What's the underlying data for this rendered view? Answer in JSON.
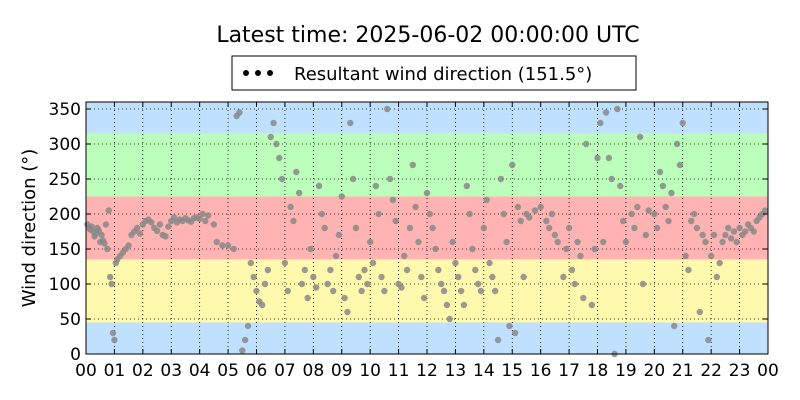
{
  "chart_data": {
    "type": "scatter",
    "title": "Latest time: 2025-06-02 00:00:00 UTC",
    "xlabel": "",
    "ylabel": "Wind direction (°)",
    "xlim": [
      0,
      24
    ],
    "ylim": [
      0,
      360
    ],
    "x_ticks": [
      "00",
      "01",
      "02",
      "03",
      "04",
      "05",
      "06",
      "07",
      "08",
      "09",
      "10",
      "11",
      "12",
      "13",
      "14",
      "15",
      "16",
      "17",
      "18",
      "19",
      "20",
      "21",
      "22",
      "23",
      "00"
    ],
    "y_ticks": [
      0,
      50,
      100,
      150,
      200,
      250,
      300,
      350
    ],
    "grid": true,
    "legend": {
      "placement": "top-center",
      "entries": [
        "Resultant wind direction (151.5°)"
      ]
    },
    "background_bands": [
      {
        "from": 0,
        "to": 45,
        "color": "#bfe0ff"
      },
      {
        "from": 45,
        "to": 135,
        "color": "#fff9ad"
      },
      {
        "from": 135,
        "to": 225,
        "color": "#ffb3b3"
      },
      {
        "from": 225,
        "to": 315,
        "color": "#bbffbb"
      },
      {
        "from": 315,
        "to": 360,
        "color": "#bfe0ff"
      }
    ],
    "series": [
      {
        "name": "Resultant wind direction (151.5°)",
        "color": "#888888",
        "points": [
          [
            0.05,
            185
          ],
          [
            0.1,
            180
          ],
          [
            0.15,
            178
          ],
          [
            0.2,
            182
          ],
          [
            0.25,
            175
          ],
          [
            0.3,
            168
          ],
          [
            0.35,
            172
          ],
          [
            0.4,
            180
          ],
          [
            0.45,
            176
          ],
          [
            0.5,
            160
          ],
          [
            0.55,
            170
          ],
          [
            0.6,
            162
          ],
          [
            0.65,
            158
          ],
          [
            0.7,
            185
          ],
          [
            0.75,
            150
          ],
          [
            0.8,
            205
          ],
          [
            0.85,
            110
          ],
          [
            0.9,
            100
          ],
          [
            0.95,
            30
          ],
          [
            1.0,
            20
          ],
          [
            1.05,
            130
          ],
          [
            1.1,
            135
          ],
          [
            1.2,
            140
          ],
          [
            1.3,
            145
          ],
          [
            1.4,
            150
          ],
          [
            1.5,
            155
          ],
          [
            1.6,
            170
          ],
          [
            1.7,
            175
          ],
          [
            1.8,
            180
          ],
          [
            1.9,
            172
          ],
          [
            2.0,
            185
          ],
          [
            2.1,
            190
          ],
          [
            2.2,
            192
          ],
          [
            2.3,
            188
          ],
          [
            2.4,
            180
          ],
          [
            2.5,
            176
          ],
          [
            2.6,
            185
          ],
          [
            2.7,
            170
          ],
          [
            2.8,
            168
          ],
          [
            2.9,
            182
          ],
          [
            3.0,
            190
          ],
          [
            3.1,
            195
          ],
          [
            3.2,
            188
          ],
          [
            3.3,
            192
          ],
          [
            3.4,
            190
          ],
          [
            3.5,
            194
          ],
          [
            3.6,
            191
          ],
          [
            3.7,
            189
          ],
          [
            3.8,
            194
          ],
          [
            3.9,
            195
          ],
          [
            4.0,
            193
          ],
          [
            4.1,
            200
          ],
          [
            4.2,
            190
          ],
          [
            4.3,
            198
          ],
          [
            4.5,
            185
          ],
          [
            4.6,
            160
          ],
          [
            4.8,
            155
          ],
          [
            5.0,
            155
          ],
          [
            5.2,
            150
          ],
          [
            5.3,
            340
          ],
          [
            5.4,
            345
          ],
          [
            5.5,
            5
          ],
          [
            5.6,
            20
          ],
          [
            5.7,
            40
          ],
          [
            5.8,
            130
          ],
          [
            5.9,
            110
          ],
          [
            6.0,
            90
          ],
          [
            6.1,
            75
          ],
          [
            6.2,
            70
          ],
          [
            6.3,
            100
          ],
          [
            6.4,
            120
          ],
          [
            6.5,
            310
          ],
          [
            6.6,
            330
          ],
          [
            6.7,
            300
          ],
          [
            6.8,
            280
          ],
          [
            6.9,
            250
          ],
          [
            7.0,
            130
          ],
          [
            7.1,
            90
          ],
          [
            7.2,
            210
          ],
          [
            7.3,
            190
          ],
          [
            7.4,
            260
          ],
          [
            7.5,
            230
          ],
          [
            7.6,
            100
          ],
          [
            7.7,
            120
          ],
          [
            7.8,
            80
          ],
          [
            7.9,
            150
          ],
          [
            8.0,
            110
          ],
          [
            8.1,
            95
          ],
          [
            8.2,
            240
          ],
          [
            8.3,
            200
          ],
          [
            8.4,
            180
          ],
          [
            8.5,
            100
          ],
          [
            8.6,
            120
          ],
          [
            8.7,
            90
          ],
          [
            8.8,
            140
          ],
          [
            8.9,
            170
          ],
          [
            9.0,
            225
          ],
          [
            9.1,
            80
          ],
          [
            9.2,
            60
          ],
          [
            9.3,
            330
          ],
          [
            9.4,
            250
          ],
          [
            9.5,
            180
          ],
          [
            9.6,
            110
          ],
          [
            9.7,
            90
          ],
          [
            9.8,
            120
          ],
          [
            9.9,
            100
          ],
          [
            10.0,
            160
          ],
          [
            10.1,
            130
          ],
          [
            10.2,
            240
          ],
          [
            10.3,
            200
          ],
          [
            10.4,
            110
          ],
          [
            10.5,
            90
          ],
          [
            10.6,
            350
          ],
          [
            10.7,
            250
          ],
          [
            10.8,
            220
          ],
          [
            10.9,
            190
          ],
          [
            11.0,
            100
          ],
          [
            11.1,
            95
          ],
          [
            11.2,
            140
          ],
          [
            11.3,
            120
          ],
          [
            11.4,
            180
          ],
          [
            11.5,
            270
          ],
          [
            11.6,
            210
          ],
          [
            11.7,
            160
          ],
          [
            11.8,
            110
          ],
          [
            11.9,
            80
          ],
          [
            12.0,
            230
          ],
          [
            12.1,
            200
          ],
          [
            12.2,
            180
          ],
          [
            12.3,
            150
          ],
          [
            12.4,
            120
          ],
          [
            12.5,
            100
          ],
          [
            12.6,
            90
          ],
          [
            12.7,
            70
          ],
          [
            12.8,
            50
          ],
          [
            12.9,
            160
          ],
          [
            13.0,
            130
          ],
          [
            13.1,
            110
          ],
          [
            13.2,
            90
          ],
          [
            13.3,
            70
          ],
          [
            13.4,
            240
          ],
          [
            13.5,
            200
          ],
          [
            13.6,
            150
          ],
          [
            13.7,
            120
          ],
          [
            13.8,
            100
          ],
          [
            13.9,
            90
          ],
          [
            14.0,
            180
          ],
          [
            14.1,
            220
          ],
          [
            14.2,
            130
          ],
          [
            14.3,
            110
          ],
          [
            14.4,
            90
          ],
          [
            14.5,
            20
          ],
          [
            14.6,
            250
          ],
          [
            14.7,
            200
          ],
          [
            14.8,
            160
          ],
          [
            14.9,
            40
          ],
          [
            15.0,
            270
          ],
          [
            15.1,
            30
          ],
          [
            15.2,
            210
          ],
          [
            15.3,
            190
          ],
          [
            15.4,
            110
          ],
          [
            15.5,
            200
          ],
          [
            15.6,
            195
          ],
          [
            15.8,
            205
          ],
          [
            16.0,
            210
          ],
          [
            16.2,
            190
          ],
          [
            16.3,
            180
          ],
          [
            16.4,
            200
          ],
          [
            16.5,
            170
          ],
          [
            16.6,
            160
          ],
          [
            16.8,
            110
          ],
          [
            16.9,
            150
          ],
          [
            17.0,
            180
          ],
          [
            17.1,
            120
          ],
          [
            17.2,
            100
          ],
          [
            17.3,
            160
          ],
          [
            17.4,
            140
          ],
          [
            17.5,
            80
          ],
          [
            17.6,
            300
          ],
          [
            17.8,
            70
          ],
          [
            17.9,
            150
          ],
          [
            18.0,
            280
          ],
          [
            18.1,
            330
          ],
          [
            18.2,
            160
          ],
          [
            18.3,
            345
          ],
          [
            18.4,
            280
          ],
          [
            18.5,
            250
          ],
          [
            18.6,
            0
          ],
          [
            18.7,
            350
          ],
          [
            18.8,
            240
          ],
          [
            18.9,
            190
          ],
          [
            19.0,
            160
          ],
          [
            19.2,
            200
          ],
          [
            19.3,
            180
          ],
          [
            19.4,
            210
          ],
          [
            19.5,
            310
          ],
          [
            19.6,
            100
          ],
          [
            19.7,
            170
          ],
          [
            19.8,
            205
          ],
          [
            20.0,
            200
          ],
          [
            20.1,
            180
          ],
          [
            20.2,
            260
          ],
          [
            20.3,
            240
          ],
          [
            20.4,
            210
          ],
          [
            20.5,
            190
          ],
          [
            20.6,
            230
          ],
          [
            20.7,
            40
          ],
          [
            20.8,
            300
          ],
          [
            20.9,
            270
          ],
          [
            21.0,
            330
          ],
          [
            21.1,
            140
          ],
          [
            21.2,
            120
          ],
          [
            21.3,
            190
          ],
          [
            21.4,
            200
          ],
          [
            21.5,
            180
          ],
          [
            21.6,
            60
          ],
          [
            21.7,
            170
          ],
          [
            21.8,
            160
          ],
          [
            21.9,
            20
          ],
          [
            22.0,
            140
          ],
          [
            22.1,
            170
          ],
          [
            22.2,
            110
          ],
          [
            22.3,
            130
          ],
          [
            22.4,
            160
          ],
          [
            22.5,
            170
          ],
          [
            22.6,
            180
          ],
          [
            22.7,
            165
          ],
          [
            22.8,
            175
          ],
          [
            22.9,
            160
          ],
          [
            23.0,
            180
          ],
          [
            23.1,
            170
          ],
          [
            23.2,
            175
          ],
          [
            23.3,
            185
          ],
          [
            23.4,
            180
          ],
          [
            23.5,
            175
          ],
          [
            23.6,
            190
          ],
          [
            23.7,
            195
          ],
          [
            23.8,
            200
          ],
          [
            23.9,
            205
          ]
        ]
      }
    ]
  }
}
